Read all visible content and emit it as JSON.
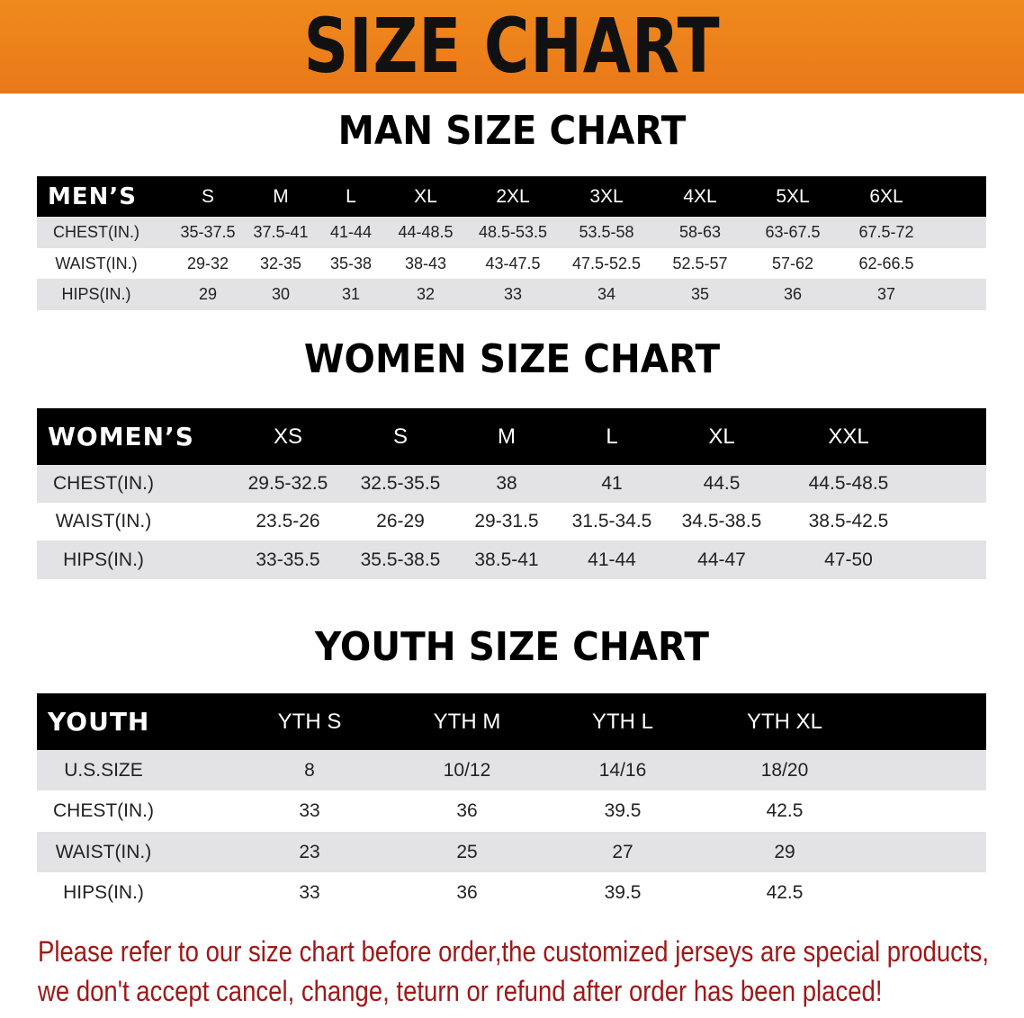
{
  "banner": {
    "title": "SIZE CHART",
    "color": "#ee8120"
  },
  "men": {
    "title": "MAN SIZE CHART",
    "header": [
      "MEN’S",
      "S",
      "M",
      "L",
      "XL",
      "2XL",
      "3XL",
      "4XL",
      "5XL",
      "6XL"
    ],
    "rows": [
      [
        "CHEST(IN.)",
        "35-37.5",
        "37.5-41",
        "41-44",
        "44-48.5",
        "48.5-53.5",
        "53.5-58",
        "58-63",
        "63-67.5",
        "67.5-72"
      ],
      [
        "WAIST(IN.)",
        "29-32",
        "32-35",
        "35-38",
        "38-43",
        "43-47.5",
        "47.5-52.5",
        "52.5-57",
        "57-62",
        "62-66.5"
      ],
      [
        "HIPS(IN.)",
        "29",
        "30",
        "31",
        "32",
        "33",
        "34",
        "35",
        "36",
        "37"
      ]
    ]
  },
  "women": {
    "title": "WOMEN SIZE CHART",
    "header": [
      "WOMEN’S",
      "XS",
      "S",
      "M",
      "L",
      "XL",
      "XXL"
    ],
    "rows": [
      [
        "CHEST(IN.)",
        "29.5-32.5",
        "32.5-35.5",
        "38",
        "41",
        "44.5",
        "44.5-48.5"
      ],
      [
        "WAIST(IN.)",
        "23.5-26",
        "26-29",
        "29-31.5",
        "31.5-34.5",
        "34.5-38.5",
        "38.5-42.5"
      ],
      [
        "HIPS(IN.)",
        "33-35.5",
        "35.5-38.5",
        "38.5-41",
        "41-44",
        "44-47",
        "47-50"
      ]
    ]
  },
  "youth": {
    "title": "YOUTH SIZE CHART",
    "header": [
      "YOUTH",
      "YTH S",
      "YTH M",
      "YTH L",
      "YTH XL"
    ],
    "rows": [
      [
        "U.S.SIZE",
        "8",
        "10/12",
        "14/16",
        "18/20"
      ],
      [
        "CHEST(IN.)",
        "33",
        "36",
        "39.5",
        "42.5"
      ],
      [
        "WAIST(IN.)",
        "23",
        "25",
        "27",
        "29"
      ],
      [
        "HIPS(IN.)",
        "33",
        "36",
        "39.5",
        "42.5"
      ]
    ]
  },
  "note": {
    "line1": "Please refer to our size chart before order,the customized jerseys are special products,",
    "line2": "we don't accept cancel, change, teturn or refund after order has been placed!",
    "color": "#a01818"
  }
}
